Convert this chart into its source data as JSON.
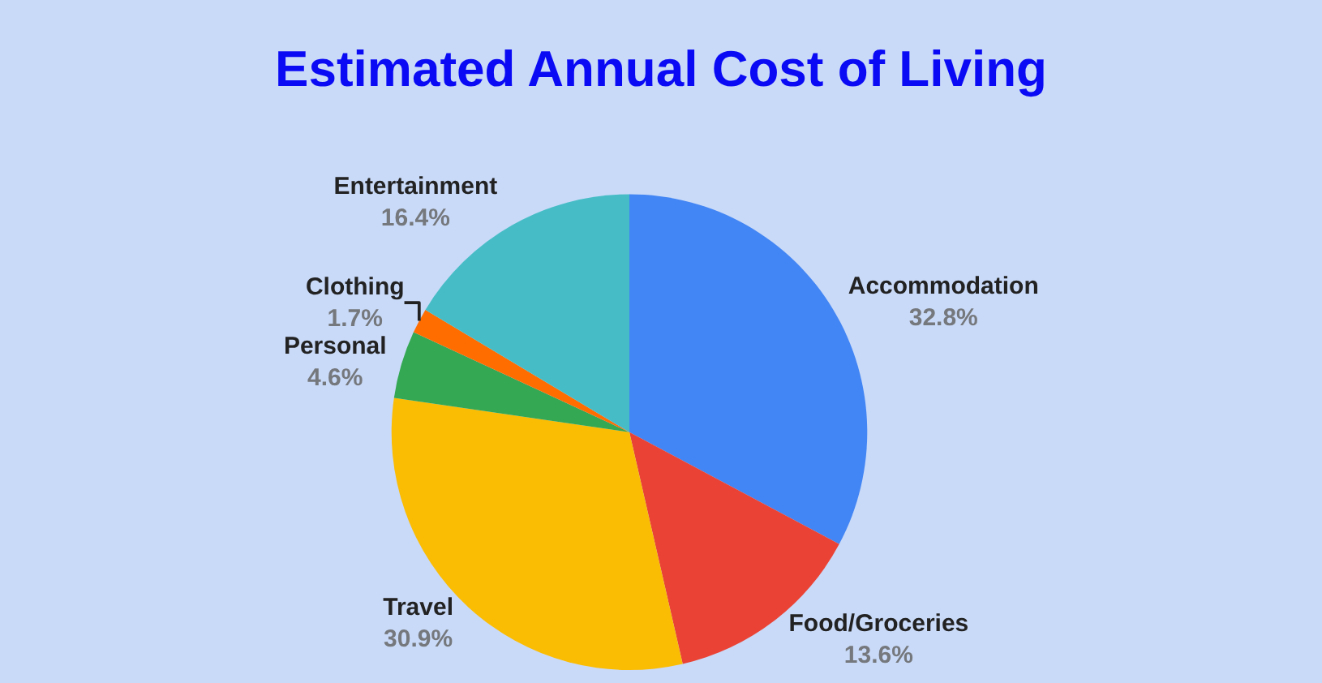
{
  "chart_data": {
    "type": "pie",
    "title": "Estimated Annual Cost of Living",
    "categories": [
      "Accommodation",
      "Food/Groceries",
      "Travel",
      "Personal",
      "Clothing",
      "Entertainment"
    ],
    "values": [
      32.8,
      13.6,
      30.9,
      4.6,
      1.7,
      16.4
    ],
    "value_labels": [
      "32.8%",
      "13.6%",
      "30.9%",
      "4.6%",
      "1.7%",
      "16.4%"
    ],
    "colors": [
      "#4285f4",
      "#ea4335",
      "#fbbc04",
      "#34a853",
      "#ff6d01",
      "#46bdc6"
    ],
    "legend": false
  }
}
